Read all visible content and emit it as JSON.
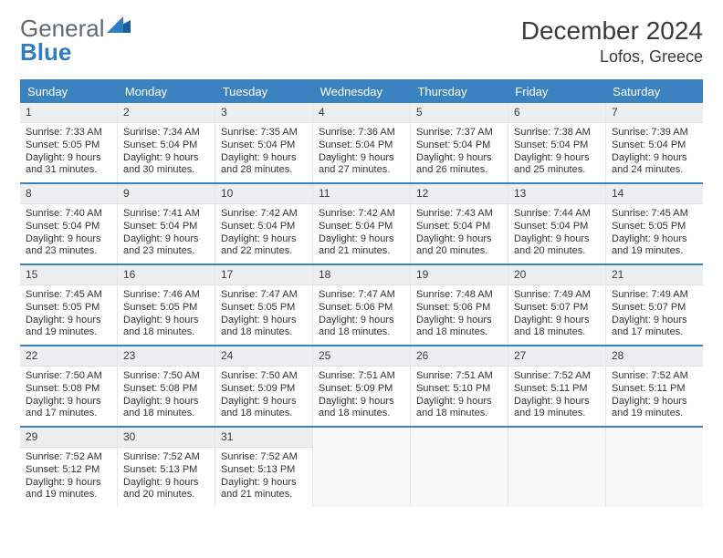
{
  "logo": {
    "text1": "General",
    "text2": "Blue"
  },
  "title": "December 2024",
  "location": "Lofos, Greece",
  "colors": {
    "header_bg": "#3b83c0",
    "header_text": "#ffffff",
    "week_divider": "#3b83c0",
    "daynum_bg": "#eceeef",
    "page_bg": "#ffffff",
    "text": "#333333",
    "logo_gray": "#5f6a72",
    "logo_blue": "#2f7dc0"
  },
  "day_headers": [
    "Sunday",
    "Monday",
    "Tuesday",
    "Wednesday",
    "Thursday",
    "Friday",
    "Saturday"
  ],
  "weeks": [
    [
      {
        "n": "1",
        "sunrise": "Sunrise: 7:33 AM",
        "sunset": "Sunset: 5:05 PM",
        "daylight": "Daylight: 9 hours and 31 minutes."
      },
      {
        "n": "2",
        "sunrise": "Sunrise: 7:34 AM",
        "sunset": "Sunset: 5:04 PM",
        "daylight": "Daylight: 9 hours and 30 minutes."
      },
      {
        "n": "3",
        "sunrise": "Sunrise: 7:35 AM",
        "sunset": "Sunset: 5:04 PM",
        "daylight": "Daylight: 9 hours and 28 minutes."
      },
      {
        "n": "4",
        "sunrise": "Sunrise: 7:36 AM",
        "sunset": "Sunset: 5:04 PM",
        "daylight": "Daylight: 9 hours and 27 minutes."
      },
      {
        "n": "5",
        "sunrise": "Sunrise: 7:37 AM",
        "sunset": "Sunset: 5:04 PM",
        "daylight": "Daylight: 9 hours and 26 minutes."
      },
      {
        "n": "6",
        "sunrise": "Sunrise: 7:38 AM",
        "sunset": "Sunset: 5:04 PM",
        "daylight": "Daylight: 9 hours and 25 minutes."
      },
      {
        "n": "7",
        "sunrise": "Sunrise: 7:39 AM",
        "sunset": "Sunset: 5:04 PM",
        "daylight": "Daylight: 9 hours and 24 minutes."
      }
    ],
    [
      {
        "n": "8",
        "sunrise": "Sunrise: 7:40 AM",
        "sunset": "Sunset: 5:04 PM",
        "daylight": "Daylight: 9 hours and 23 minutes."
      },
      {
        "n": "9",
        "sunrise": "Sunrise: 7:41 AM",
        "sunset": "Sunset: 5:04 PM",
        "daylight": "Daylight: 9 hours and 23 minutes."
      },
      {
        "n": "10",
        "sunrise": "Sunrise: 7:42 AM",
        "sunset": "Sunset: 5:04 PM",
        "daylight": "Daylight: 9 hours and 22 minutes."
      },
      {
        "n": "11",
        "sunrise": "Sunrise: 7:42 AM",
        "sunset": "Sunset: 5:04 PM",
        "daylight": "Daylight: 9 hours and 21 minutes."
      },
      {
        "n": "12",
        "sunrise": "Sunrise: 7:43 AM",
        "sunset": "Sunset: 5:04 PM",
        "daylight": "Daylight: 9 hours and 20 minutes."
      },
      {
        "n": "13",
        "sunrise": "Sunrise: 7:44 AM",
        "sunset": "Sunset: 5:04 PM",
        "daylight": "Daylight: 9 hours and 20 minutes."
      },
      {
        "n": "14",
        "sunrise": "Sunrise: 7:45 AM",
        "sunset": "Sunset: 5:05 PM",
        "daylight": "Daylight: 9 hours and 19 minutes."
      }
    ],
    [
      {
        "n": "15",
        "sunrise": "Sunrise: 7:45 AM",
        "sunset": "Sunset: 5:05 PM",
        "daylight": "Daylight: 9 hours and 19 minutes."
      },
      {
        "n": "16",
        "sunrise": "Sunrise: 7:46 AM",
        "sunset": "Sunset: 5:05 PM",
        "daylight": "Daylight: 9 hours and 18 minutes."
      },
      {
        "n": "17",
        "sunrise": "Sunrise: 7:47 AM",
        "sunset": "Sunset: 5:05 PM",
        "daylight": "Daylight: 9 hours and 18 minutes."
      },
      {
        "n": "18",
        "sunrise": "Sunrise: 7:47 AM",
        "sunset": "Sunset: 5:06 PM",
        "daylight": "Daylight: 9 hours and 18 minutes."
      },
      {
        "n": "19",
        "sunrise": "Sunrise: 7:48 AM",
        "sunset": "Sunset: 5:06 PM",
        "daylight": "Daylight: 9 hours and 18 minutes."
      },
      {
        "n": "20",
        "sunrise": "Sunrise: 7:49 AM",
        "sunset": "Sunset: 5:07 PM",
        "daylight": "Daylight: 9 hours and 18 minutes."
      },
      {
        "n": "21",
        "sunrise": "Sunrise: 7:49 AM",
        "sunset": "Sunset: 5:07 PM",
        "daylight": "Daylight: 9 hours and 17 minutes."
      }
    ],
    [
      {
        "n": "22",
        "sunrise": "Sunrise: 7:50 AM",
        "sunset": "Sunset: 5:08 PM",
        "daylight": "Daylight: 9 hours and 17 minutes."
      },
      {
        "n": "23",
        "sunrise": "Sunrise: 7:50 AM",
        "sunset": "Sunset: 5:08 PM",
        "daylight": "Daylight: 9 hours and 18 minutes."
      },
      {
        "n": "24",
        "sunrise": "Sunrise: 7:50 AM",
        "sunset": "Sunset: 5:09 PM",
        "daylight": "Daylight: 9 hours and 18 minutes."
      },
      {
        "n": "25",
        "sunrise": "Sunrise: 7:51 AM",
        "sunset": "Sunset: 5:09 PM",
        "daylight": "Daylight: 9 hours and 18 minutes."
      },
      {
        "n": "26",
        "sunrise": "Sunrise: 7:51 AM",
        "sunset": "Sunset: 5:10 PM",
        "daylight": "Daylight: 9 hours and 18 minutes."
      },
      {
        "n": "27",
        "sunrise": "Sunrise: 7:52 AM",
        "sunset": "Sunset: 5:11 PM",
        "daylight": "Daylight: 9 hours and 19 minutes."
      },
      {
        "n": "28",
        "sunrise": "Sunrise: 7:52 AM",
        "sunset": "Sunset: 5:11 PM",
        "daylight": "Daylight: 9 hours and 19 minutes."
      }
    ],
    [
      {
        "n": "29",
        "sunrise": "Sunrise: 7:52 AM",
        "sunset": "Sunset: 5:12 PM",
        "daylight": "Daylight: 9 hours and 19 minutes."
      },
      {
        "n": "30",
        "sunrise": "Sunrise: 7:52 AM",
        "sunset": "Sunset: 5:13 PM",
        "daylight": "Daylight: 9 hours and 20 minutes."
      },
      {
        "n": "31",
        "sunrise": "Sunrise: 7:52 AM",
        "sunset": "Sunset: 5:13 PM",
        "daylight": "Daylight: 9 hours and 21 minutes."
      },
      null,
      null,
      null,
      null
    ]
  ]
}
